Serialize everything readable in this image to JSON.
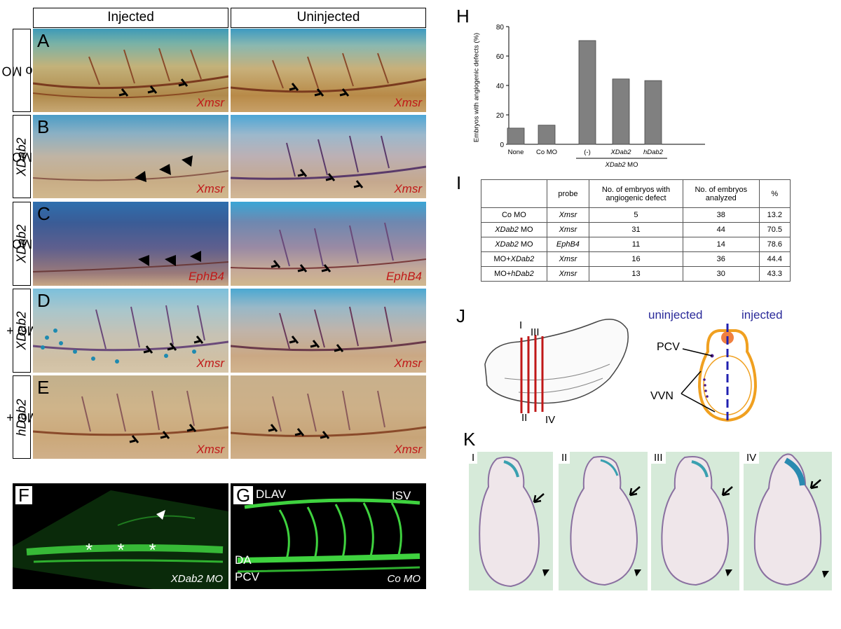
{
  "columns": {
    "injected": "Injected",
    "uninjected": "Uninjected"
  },
  "rows": [
    {
      "letter": "A",
      "label": "Co MO",
      "probe": "Xmsr"
    },
    {
      "letter": "B",
      "label_italic": "XDab2",
      "label_rest": " MO",
      "probe": "Xmsr"
    },
    {
      "letter": "C",
      "label_italic": "XDab2",
      "label_rest": " MO",
      "probe": "EphB4"
    },
    {
      "letter": "D",
      "label_pre": "MO + ",
      "label_italic": "XDab2",
      "probe": "Xmsr"
    },
    {
      "letter": "E",
      "label_pre": "MO + ",
      "label_italic": "hDab2",
      "probe": "Xmsr"
    }
  ],
  "panel_F": {
    "letter": "F",
    "caption": "XDab2 MO",
    "marks": "* * *"
  },
  "panel_G": {
    "letter": "G",
    "caption": "Co MO",
    "dlav": "DLAV",
    "isv": "ISV",
    "da": "DA",
    "pcv": "PCV"
  },
  "panel_H": {
    "letter": "H",
    "ylabel": "Embryos with angiogenic defects (%)",
    "yticks": [
      "0",
      "20",
      "40",
      "60",
      "80"
    ],
    "group_label": "XDab2 MO"
  },
  "chart_data": {
    "type": "bar",
    "categories": [
      "None",
      "Co MO",
      "(-)",
      "XDab2",
      "hDab2"
    ],
    "values": [
      11,
      13,
      70.5,
      44.4,
      43.3
    ],
    "title": "",
    "xlabel": "XDab2 MO",
    "ylabel": "Embryos with angiogenic defects (%)",
    "ylim": [
      0,
      80
    ],
    "grid": false,
    "bar_color": "#808080"
  },
  "panel_I": {
    "letter": "I",
    "headers": [
      "",
      "probe",
      "No. of embryos with angiogenic defect",
      "No. of embryos analyzed",
      "%"
    ],
    "rows": [
      {
        "group": "Co MO",
        "probe": "Xmsr",
        "defect": "5",
        "analyzed": "38",
        "pct": "13.2"
      },
      {
        "group_italic": "XDab2",
        "group_rest": " MO",
        "probe": "Xmsr",
        "defect": "31",
        "analyzed": "44",
        "pct": "70.5"
      },
      {
        "group_italic": "XDab2",
        "group_rest": " MO",
        "probe": "EphB4",
        "defect": "11",
        "analyzed": "14",
        "pct": "78.6"
      },
      {
        "group_pre": "MO+",
        "group_italic": "XDab2",
        "probe": "Xmsr",
        "defect": "16",
        "analyzed": "36",
        "pct": "44.4"
      },
      {
        "group_pre": "MO+",
        "group_italic": "hDab2",
        "probe": "Xmsr",
        "defect": "13",
        "analyzed": "30",
        "pct": "43.3"
      }
    ]
  },
  "panel_J": {
    "letter": "J",
    "sections": [
      "I",
      "II",
      "III",
      "IV"
    ],
    "uninjected": "uninjected",
    "injected": "injected",
    "pcv": "PCV",
    "vvn": "VVN"
  },
  "panel_K": {
    "letter": "K",
    "sections": [
      "I",
      "II",
      "III",
      "IV"
    ]
  }
}
